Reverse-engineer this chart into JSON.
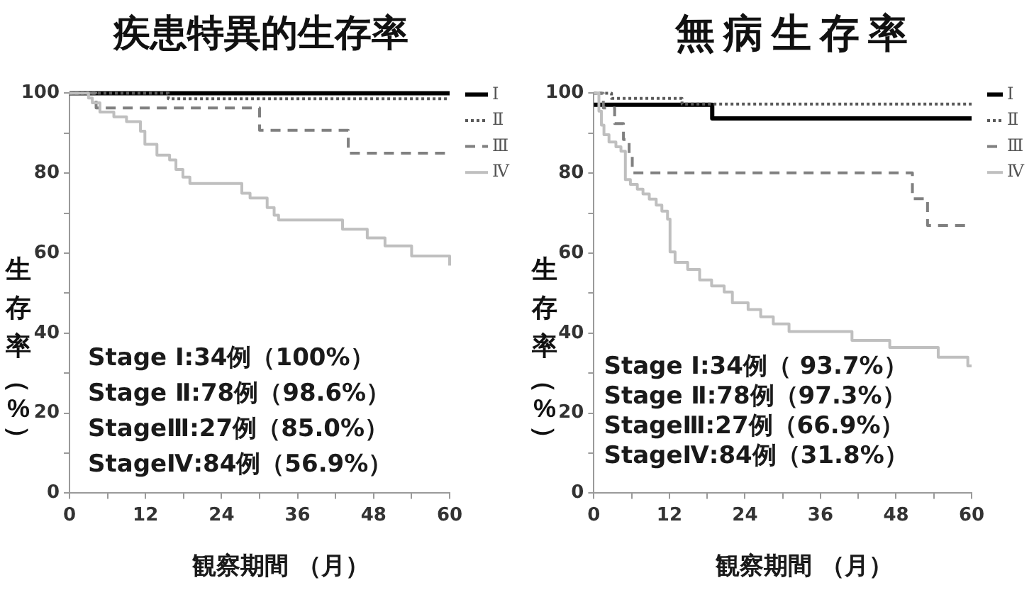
{
  "chart_data": [
    {
      "type": "step",
      "title": "疾患特異的生存率",
      "xlabel": "観察期間 （月）",
      "ylabel": "生存率（%）",
      "series": [
        {
          "name": "Ⅰ",
          "color": "#000000",
          "line_style": "solid",
          "x": [
            0,
            60
          ],
          "values": [
            100,
            100
          ]
        },
        {
          "name": "Ⅱ",
          "color": "#595959",
          "line_style": "dotted",
          "x": [
            0,
            15.6,
            60
          ],
          "values": [
            100,
            98.6,
            98.6
          ]
        },
        {
          "name": "Ⅲ",
          "color": "#808080",
          "line_style": "dashed",
          "x": [
            0,
            4.2,
            30,
            44,
            60
          ],
          "values": [
            100,
            96.3,
            90.7,
            85,
            85
          ]
        },
        {
          "name": "Ⅳ",
          "color": "#bfbfbf",
          "line_style": "solid",
          "x": [
            0,
            3,
            3.6,
            4.8,
            7,
            9,
            11.2,
            11.9,
            13.8,
            15.8,
            16.8,
            17.9,
            19,
            27.2,
            28.5,
            31.2,
            32.3,
            33,
            43.1,
            47,
            49.8,
            54,
            60
          ],
          "values": [
            100,
            98.8,
            97.6,
            95.3,
            94.1,
            92.9,
            90.5,
            87.2,
            84.5,
            83.3,
            80.9,
            79,
            77.4,
            75,
            73.8,
            71.4,
            69.5,
            68.3,
            66,
            63.8,
            61.8,
            59.3,
            56.9
          ]
        }
      ],
      "xlim": [
        0,
        60
      ],
      "ylim": [
        0,
        100
      ],
      "xticks": [
        0,
        {
          "value": 6,
          "label": null
        },
        12,
        {
          "value": 18,
          "label": null
        },
        24,
        {
          "value": 30,
          "label": null
        },
        36,
        {
          "value": 42,
          "label": null
        },
        48,
        {
          "value": 54,
          "label": null
        },
        60
      ],
      "yticks": [
        0,
        {
          "value": 10,
          "label": null
        },
        20,
        {
          "value": 30,
          "label": null
        },
        40,
        {
          "value": 50,
          "label": null
        },
        60,
        {
          "value": 70,
          "label": null
        },
        80,
        {
          "value": 90,
          "label": null
        },
        100
      ],
      "legend": "top right",
      "annotations": [
        "Stage Ⅰ:34例（100%）",
        "Stage Ⅱ:78例（98.6%）",
        "StageⅢ:27例（85.0%）",
        "StageⅣ:84例（56.9%）"
      ]
    },
    {
      "type": "step",
      "title": "無病生存率",
      "xlabel": "観察期間 （月）",
      "ylabel": "生存率（%）",
      "series": [
        {
          "name": "Ⅰ",
          "color": "#000000",
          "line_style": "solid",
          "x": [
            0,
            18.8,
            60
          ],
          "values": [
            97.1,
            93.7,
            93.7
          ]
        },
        {
          "name": "Ⅱ",
          "color": "#595959",
          "line_style": "dotted",
          "x": [
            0,
            2.8,
            14,
            60
          ],
          "values": [
            100,
            98.7,
            97.3,
            97.3
          ]
        },
        {
          "name": "Ⅲ",
          "color": "#808080",
          "line_style": "dashed",
          "x": [
            0,
            1.5,
            3.3,
            4.7,
            5.6,
            6.1,
            50.6,
            53,
            60
          ],
          "values": [
            100,
            96.3,
            92.4,
            88.4,
            84.3,
            80.1,
            73.6,
            66.9,
            66.9
          ]
        },
        {
          "name": "Ⅳ",
          "color": "#bfbfbf",
          "line_style": "solid",
          "x": [
            0,
            0.8,
            1.2,
            1.6,
            2.4,
            3.5,
            4.3,
            5,
            5.8,
            6.9,
            7.8,
            8.8,
            9.9,
            10.8,
            11.7,
            12.1,
            12.9,
            14.9,
            16.8,
            18.7,
            20.7,
            22,
            24.5,
            26.5,
            28.5,
            31,
            41,
            47,
            54.7,
            59.4,
            60
          ],
          "values": [
            100,
            95.5,
            92,
            89.6,
            87.8,
            86.6,
            85.5,
            78.4,
            77.2,
            76,
            74.8,
            73.5,
            72,
            70.5,
            68.5,
            60.3,
            57.7,
            55.9,
            53.3,
            51.8,
            50.3,
            47.6,
            45.9,
            44.1,
            42.3,
            40.4,
            38.2,
            36.4,
            34,
            31.8,
            31.8
          ]
        }
      ],
      "xlim": [
        0,
        60
      ],
      "ylim": [
        0,
        100
      ],
      "xticks": [
        0,
        {
          "value": 6,
          "label": null
        },
        12,
        {
          "value": 18,
          "label": null
        },
        24,
        {
          "value": 30,
          "label": null
        },
        36,
        {
          "value": 42,
          "label": null
        },
        48,
        {
          "value": 54,
          "label": null
        },
        60
      ],
      "yticks": [
        0,
        {
          "value": 10,
          "label": null
        },
        20,
        {
          "value": 30,
          "label": null
        },
        40,
        {
          "value": 50,
          "label": null
        },
        60,
        {
          "value": 70,
          "label": null
        },
        80,
        {
          "value": 90,
          "label": null
        },
        100
      ],
      "legend": "top right",
      "annotations": [
        "Stage Ⅰ:34例（ 93.7%）",
        "Stage Ⅱ:78例（97.3%）",
        "StageⅢ:27例（66.9%）",
        "StageⅣ:84例（31.8%）"
      ]
    }
  ]
}
